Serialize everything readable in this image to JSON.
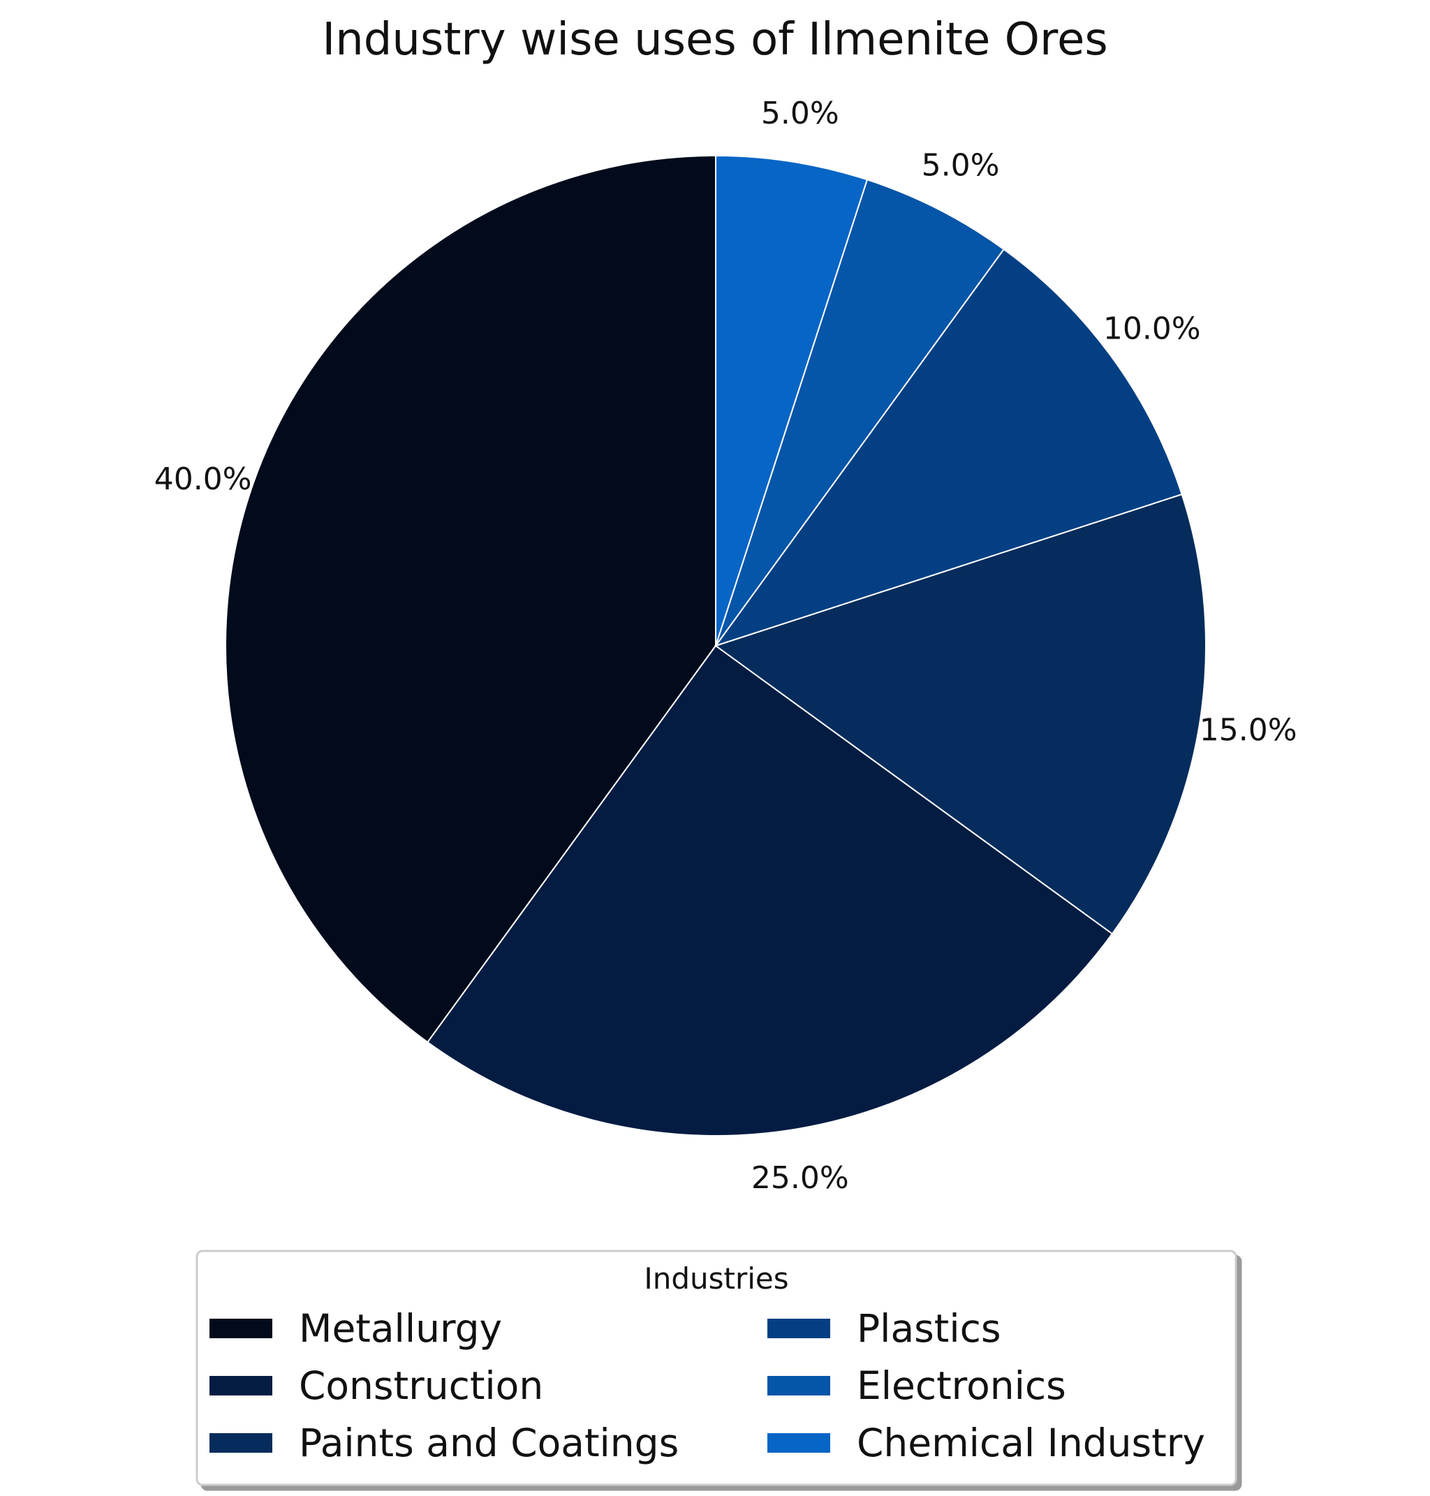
{
  "chart_data": {
    "type": "pie",
    "title": "Industry wise uses of Ilmenite Ores",
    "labels": [
      "Metallurgy",
      "Construction",
      "Paints and Coatings",
      "Plastics",
      "Electronics",
      "Chemical Industry"
    ],
    "values": [
      40.0,
      25.0,
      15.0,
      10.0,
      5.0,
      5.0
    ],
    "value_labels": [
      "40.0%",
      "25.0%",
      "15.0%",
      "10.0%",
      "5.0%",
      "5.0%"
    ],
    "colors": [
      "#020b1b",
      "#041c42",
      "#052c5c",
      "#043f84",
      "#0555a8",
      "#0765c6"
    ],
    "start": "12 o'clock",
    "direction": "counterclockwise",
    "legend": {
      "title": "Industries",
      "placement": "bottom-center",
      "columns": 2
    }
  }
}
